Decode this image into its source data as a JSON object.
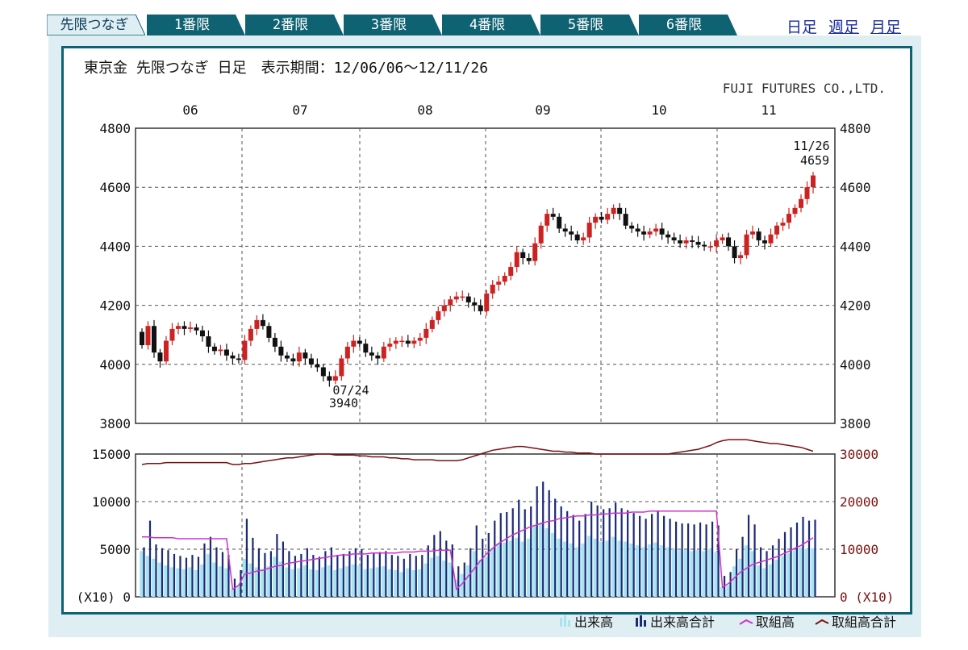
{
  "tabs": [
    {
      "label": "先限つなぎ",
      "active": true
    },
    {
      "label": "1番限",
      "active": false
    },
    {
      "label": "2番限",
      "active": false
    },
    {
      "label": "3番限",
      "active": false
    },
    {
      "label": "4番限",
      "active": false
    },
    {
      "label": "5番限",
      "active": false
    },
    {
      "label": "6番限",
      "active": false
    }
  ],
  "period_links": {
    "daily": "日足",
    "weekly": "週足",
    "monthly": "月足"
  },
  "header": {
    "title": "東京金 先限つなぎ 日足　表示期間：12/06/06～12/11/26",
    "company": "FUJI FUTURES CO.,LTD."
  },
  "colors": {
    "tab_bg": "#0f6272",
    "frame_bg": "#dfeef3",
    "up_candle": "#cc2222",
    "down_candle": "#111111",
    "volume_bar": "#a8e4f0",
    "volume_total_bar": "#1c2a78",
    "open_interest": "#cc33cc",
    "open_interest_total": "#7a1010",
    "grid": "#555555"
  },
  "chart_data": [
    {
      "type": "candlestick",
      "title": "東京金 先限つなぎ 日足",
      "x_month_labels": [
        "06",
        "07",
        "08",
        "09",
        "10",
        "11"
      ],
      "ylim": [
        3800,
        4800
      ],
      "y_ticks": [
        3800,
        4000,
        4200,
        4400,
        4600,
        4800
      ],
      "annotations": [
        {
          "date": "07/24",
          "value": 3940,
          "text": [
            "07/24",
            "3940"
          ]
        },
        {
          "date": "11/26",
          "value": 4659,
          "text": [
            "11/26",
            "4659"
          ]
        }
      ],
      "close_path": [
        4065,
        4130,
        4040,
        4010,
        4080,
        4120,
        4130,
        4120,
        4125,
        4115,
        4095,
        4060,
        4045,
        4050,
        4030,
        4020,
        4015,
        4080,
        4120,
        4150,
        4130,
        4090,
        4060,
        4030,
        4020,
        4010,
        4040,
        4020,
        4000,
        3990,
        3960,
        3945,
        3960,
        4020,
        4060,
        4080,
        4070,
        4040,
        4030,
        4020,
        4060,
        4070,
        4080,
        4080,
        4070,
        4080,
        4090,
        4120,
        4150,
        4180,
        4200,
        4220,
        4230,
        4230,
        4210,
        4200,
        4180,
        4240,
        4270,
        4280,
        4300,
        4330,
        4380,
        4360,
        4350,
        4410,
        4470,
        4510,
        4500,
        4460,
        4450,
        4440,
        4420,
        4430,
        4480,
        4500,
        4490,
        4510,
        4530,
        4510,
        4470,
        4460,
        4450,
        4440,
        4450,
        4460,
        4440,
        4430,
        4420,
        4410,
        4420,
        4415,
        4405,
        4400,
        4400,
        4420,
        4430,
        4400,
        4360,
        4370,
        4440,
        4450,
        4420,
        4410,
        4440,
        4470,
        4480,
        4510,
        4530,
        4560,
        4600,
        4640
      ]
    },
    {
      "type": "bar+line",
      "y_left": {
        "ylim": [
          0,
          15000
        ],
        "ticks": [
          0,
          5000,
          10000,
          15000
        ],
        "unit_label": "(X10)"
      },
      "y_right": {
        "ylim": [
          0,
          30000
        ],
        "ticks": [
          0,
          10000,
          20000,
          30000
        ],
        "unit_label": "(X10)"
      },
      "legend": [
        "出来高",
        "出来高合計",
        "取組高",
        "取組高合計"
      ],
      "series": [
        {
          "name": "出来高",
          "values": [
            4800,
            4300,
            4000,
            3600,
            3300,
            3100,
            3000,
            2900,
            3100,
            2800,
            3400,
            4500,
            3600,
            3200,
            3000,
            800,
            1200,
            4000,
            3500,
            3100,
            2900,
            3200,
            4200,
            3700,
            3100,
            2900,
            3000,
            3300,
            2900,
            2800,
            3100,
            3300,
            2800,
            3000,
            3200,
            3400,
            3300,
            2900,
            3000,
            3100,
            3200,
            2900,
            2800,
            2600,
            3000,
            2800,
            2900,
            3500,
            4100,
            4300,
            3800,
            3600,
            1800,
            2400,
            3300,
            4800,
            3900,
            4200,
            5100,
            5600,
            5700,
            5900,
            6200,
            5800,
            6100,
            7400,
            7800,
            7200,
            6700,
            6100,
            5800,
            5600,
            5200,
            5600,
            6400,
            6100,
            5800,
            5900,
            6300,
            5900,
            5800,
            5600,
            5400,
            5200,
            5500,
            5700,
            5400,
            5200,
            5000,
            4900,
            4900,
            4800,
            4900,
            4800,
            5000,
            4700,
            1000,
            1200,
            3200,
            4000,
            5400,
            4800,
            3300,
            3000,
            3400,
            3900,
            4300,
            4600,
            4900,
            5200,
            5000,
            5100
          ]
        },
        {
          "name": "出来高合計",
          "values": [
            5200,
            8000,
            5500,
            5100,
            4900,
            4500,
            4300,
            4100,
            4400,
            4200,
            5600,
            6300,
            5200,
            4700,
            4400,
            1900,
            2800,
            8200,
            6200,
            5100,
            4600,
            4800,
            6600,
            5800,
            4800,
            4300,
            4500,
            5100,
            4400,
            4200,
            4800,
            5200,
            4400,
            4500,
            4800,
            5100,
            5000,
            4400,
            4600,
            4700,
            4800,
            4400,
            4300,
            4000,
            4500,
            4300,
            4400,
            5400,
            6500,
            6900,
            5900,
            5500,
            3200,
            3600,
            5100,
            7500,
            6100,
            6700,
            8000,
            8800,
            8900,
            9300,
            10200,
            9200,
            9500,
            11600,
            12100,
            11200,
            10300,
            9500,
            9000,
            8600,
            8000,
            8700,
            10000,
            9600,
            9200,
            9300,
            9900,
            9300,
            9100,
            8800,
            8500,
            8200,
            8700,
            9000,
            8500,
            8200,
            7900,
            7700,
            7700,
            7600,
            7800,
            7600,
            7900,
            7500,
            2200,
            2600,
            5000,
            6300,
            8600,
            7600,
            5200,
            4800,
            5400,
            6100,
            6800,
            7300,
            7800,
            8400,
            8000,
            8100
          ]
        },
        {
          "name": "取組高",
          "values": [
            6300,
            6300,
            6200,
            6200,
            6200,
            6200,
            6100,
            6100,
            6100,
            6100,
            6100,
            6100,
            6100,
            6100,
            6100,
            800,
            1200,
            2400,
            2500,
            2700,
            2800,
            3000,
            3200,
            3300,
            3500,
            3600,
            3700,
            3800,
            3900,
            4000,
            4100,
            4200,
            4300,
            4400,
            4400,
            4500,
            4500,
            4500,
            4600,
            4600,
            4600,
            4600,
            4600,
            4700,
            4700,
            4700,
            4800,
            4800,
            4800,
            4900,
            4900,
            4900,
            800,
            1400,
            2200,
            3000,
            3800,
            4500,
            5100,
            5600,
            6000,
            6400,
            6700,
            7000,
            7300,
            7500,
            7700,
            7900,
            8000,
            8200,
            8300,
            8400,
            8500,
            8500,
            8600,
            8600,
            8700,
            8700,
            8800,
            8800,
            8800,
            8900,
            8900,
            8900,
            9000,
            9000,
            9000,
            9000,
            9000,
            9000,
            9000,
            9000,
            9000,
            9000,
            9000,
            9000,
            1000,
            1400,
            2000,
            2600,
            3000,
            3400,
            3600,
            3800,
            4000,
            4200,
            4500,
            4800,
            5100,
            5400,
            5800,
            6200
          ]
        },
        {
          "name": "取組高合計",
          "values": [
            13900,
            14000,
            14000,
            14000,
            14100,
            14100,
            14100,
            14100,
            14100,
            14100,
            14100,
            14100,
            14100,
            14100,
            14100,
            13900,
            13900,
            14000,
            14000,
            14100,
            14200,
            14300,
            14400,
            14500,
            14600,
            14600,
            14700,
            14800,
            14900,
            15000,
            15000,
            15000,
            14900,
            14900,
            14900,
            14900,
            14800,
            14800,
            14700,
            14700,
            14700,
            14600,
            14600,
            14500,
            14500,
            14400,
            14400,
            14400,
            14400,
            14300,
            14300,
            14300,
            14300,
            14400,
            14600,
            14800,
            15000,
            15200,
            15400,
            15500,
            15600,
            15700,
            15800,
            15800,
            15700,
            15600,
            15500,
            15400,
            15300,
            15300,
            15200,
            15200,
            15100,
            15100,
            15100,
            15000,
            15000,
            15000,
            15000,
            15000,
            15000,
            15000,
            15000,
            15000,
            15000,
            15000,
            15000,
            15000,
            15100,
            15200,
            15300,
            15400,
            15500,
            15700,
            15900,
            16200,
            16400,
            16500,
            16500,
            16500,
            16500,
            16400,
            16300,
            16200,
            16100,
            16100,
            16000,
            15900,
            15800,
            15700,
            15500,
            15300
          ]
        }
      ]
    }
  ]
}
